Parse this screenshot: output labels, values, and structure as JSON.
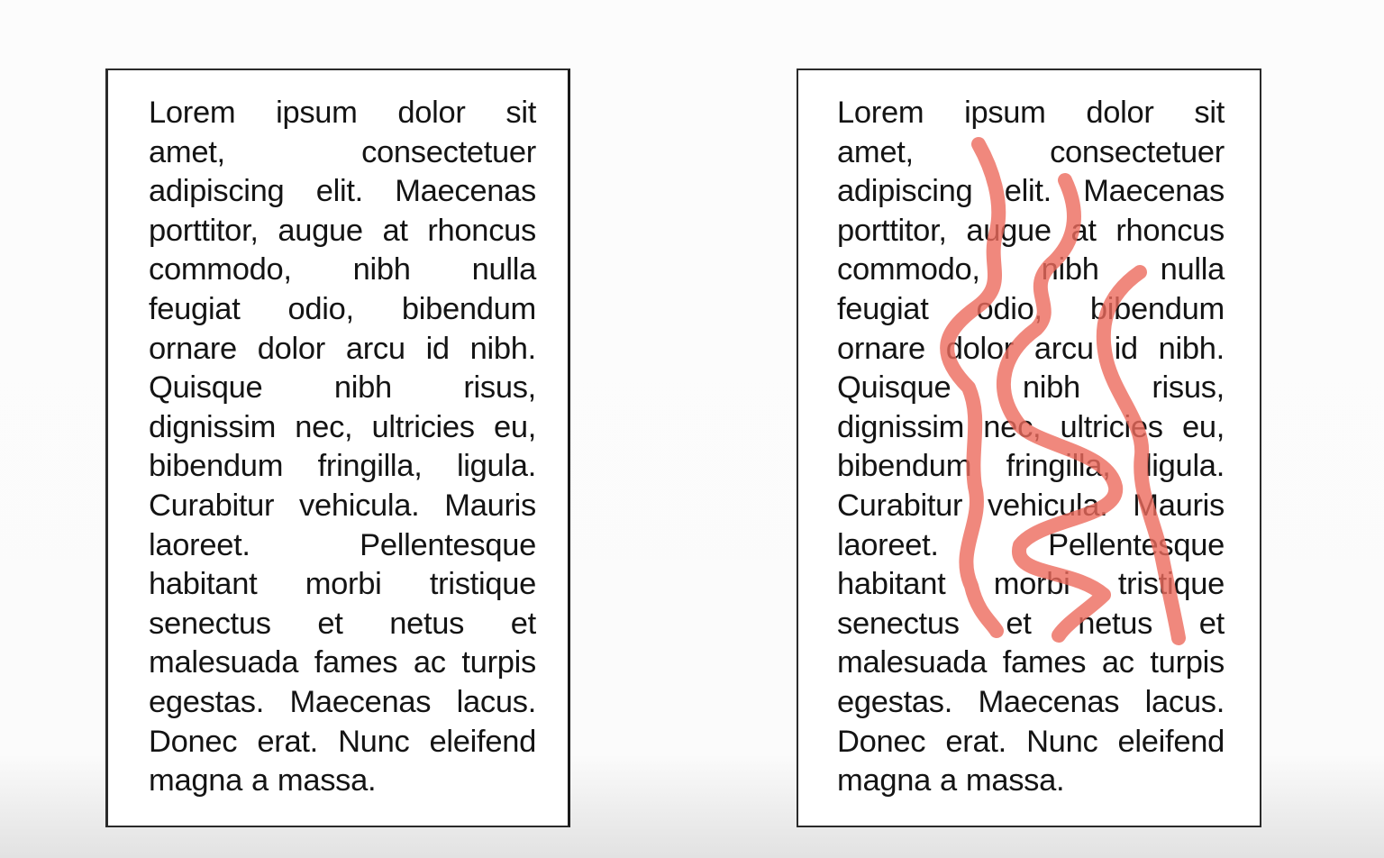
{
  "pages": [
    {
      "id": "plain",
      "lines": [
        [
          "Lorem",
          "ipsum",
          "dolor",
          "sit"
        ],
        [
          "amet,",
          "consectetuer"
        ],
        [
          "adipiscing",
          "elit.",
          "Maecenas"
        ],
        [
          "porttitor,",
          "augue",
          "at",
          "rhoncus"
        ],
        [
          "commodo,",
          "nibh",
          "nulla"
        ],
        [
          "feugiat",
          "odio,",
          "bibendum"
        ],
        [
          "ornare",
          "dolor",
          "arcu",
          "id",
          "nibh."
        ],
        [
          "Quisque",
          "nibh",
          "risus,"
        ],
        [
          "dignissim",
          "nec,",
          "ultricies",
          "eu,"
        ],
        [
          "bibendum",
          "fringilla,",
          "ligula."
        ],
        [
          "Curabitur",
          "vehicula.",
          "Mauris"
        ],
        [
          "laoreet.",
          "Pellentesque"
        ],
        [
          "habitant",
          "morbi",
          "tristique"
        ],
        [
          "senectus",
          "et",
          "netus",
          "et"
        ],
        [
          "malesuada",
          "fames",
          "ac",
          "turpis"
        ],
        [
          "egestas.",
          "Maecenas",
          "lacus."
        ],
        [
          "Donec",
          "erat.",
          "Nunc",
          "eleifend"
        ],
        [
          "magna",
          "a",
          "massa."
        ]
      ]
    },
    {
      "id": "rivers-highlighted",
      "lines": [
        [
          "Lorem",
          "ipsum",
          "dolor",
          "sit"
        ],
        [
          "amet,",
          "consectetuer"
        ],
        [
          "adipiscing",
          "elit.",
          "Maecenas"
        ],
        [
          "porttitor,",
          "augue",
          "at",
          "rhoncus"
        ],
        [
          "commodo,",
          "nibh",
          "nulla"
        ],
        [
          "feugiat",
          "odio,",
          "bibendum"
        ],
        [
          "ornare",
          "dolor",
          "arcu",
          "id",
          "nibh."
        ],
        [
          "Quisque",
          "nibh",
          "risus,"
        ],
        [
          "dignissim",
          "nec,",
          "ultricies",
          "eu,"
        ],
        [
          "bibendum",
          "fringilla,",
          "ligula."
        ],
        [
          "Curabitur",
          "vehicula.",
          "Mauris"
        ],
        [
          "laoreet.",
          "Pellentesque"
        ],
        [
          "habitant",
          "morbi",
          "tristique"
        ],
        [
          "senectus",
          "et",
          "netus",
          "et"
        ],
        [
          "malesuada",
          "fames",
          "ac",
          "turpis"
        ],
        [
          "egestas.",
          "Maecenas",
          "lacus."
        ],
        [
          "Donec",
          "erat.",
          "Nunc",
          "eleifend"
        ],
        [
          "magna",
          "a",
          "massa."
        ]
      ],
      "highlight_color": "#ec6a5c",
      "highlight_count": 3
    }
  ]
}
